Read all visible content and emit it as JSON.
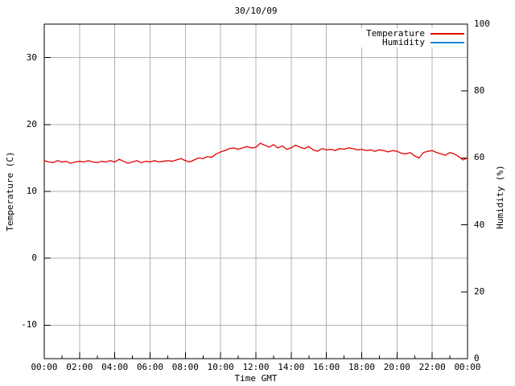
{
  "chart_data": {
    "type": "line",
    "title": "30/10/09",
    "xlabel": "Time GMT",
    "ylabel_left": "Temperature (C)",
    "ylabel_right": "Humidity (%)",
    "xlim_hours": [
      0,
      24
    ],
    "ylim_left": [
      -15,
      35
    ],
    "ylim_right": [
      0,
      100
    ],
    "grid": true,
    "grid_color": "#b0b0b0",
    "border_color": "#000000",
    "legend_position": "top-right-inside",
    "x_tick_labels": [
      "00:00",
      "02:00",
      "04:00",
      "06:00",
      "08:00",
      "10:00",
      "12:00",
      "14:00",
      "16:00",
      "18:00",
      "20:00",
      "22:00",
      "00:00"
    ],
    "x_minor_tick_hours": [
      1,
      3,
      5,
      7,
      9,
      11,
      13,
      15,
      17,
      19,
      21,
      23
    ],
    "y_left_ticks": [
      30,
      20,
      10,
      0,
      -10
    ],
    "y_right_ticks": [
      100,
      80,
      60,
      40,
      20,
      0
    ],
    "series": [
      {
        "name": "Temperature",
        "color": "#e60000",
        "axis": "left",
        "x_start_hour": 0,
        "x_step_hours": 0.25,
        "values": [
          14.6,
          14.4,
          14.3,
          14.6,
          14.4,
          14.5,
          14.2,
          14.4,
          14.5,
          14.4,
          14.6,
          14.4,
          14.3,
          14.5,
          14.4,
          14.6,
          14.4,
          14.8,
          14.5,
          14.2,
          14.4,
          14.6,
          14.3,
          14.5,
          14.4,
          14.6,
          14.4,
          14.5,
          14.6,
          14.5,
          14.7,
          14.9,
          14.6,
          14.4,
          14.7,
          15.0,
          14.9,
          15.2,
          15.1,
          15.6,
          15.9,
          16.1,
          16.4,
          16.5,
          16.3,
          16.5,
          16.7,
          16.5,
          16.6,
          17.2,
          16.9,
          16.6,
          17.0,
          16.5,
          16.8,
          16.3,
          16.5,
          16.9,
          16.6,
          16.4,
          16.7,
          16.2,
          16.0,
          16.4,
          16.2,
          16.3,
          16.1,
          16.4,
          16.3,
          16.5,
          16.4,
          16.2,
          16.3,
          16.1,
          16.2,
          16.0,
          16.2,
          16.1,
          15.9,
          16.1,
          16.0,
          15.7,
          15.6,
          15.8,
          15.3,
          15.0,
          15.8,
          16.0,
          16.1,
          15.8,
          15.6,
          15.4,
          15.8,
          15.6,
          15.2,
          14.7,
          15.0
        ]
      },
      {
        "name": "Humidity",
        "color": "#1585d8",
        "axis": "right",
        "values": []
      }
    ]
  }
}
